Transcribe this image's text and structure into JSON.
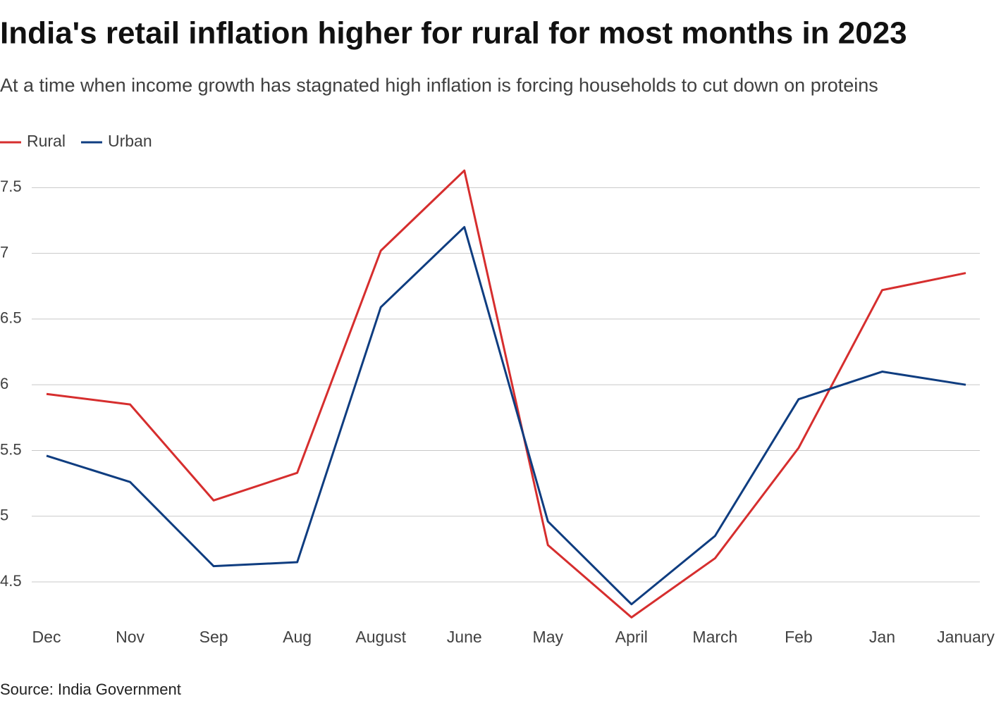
{
  "chart_data": {
    "type": "line",
    "title": "India's retail inflation higher for rural for most months in 2023",
    "subtitle": "At a time when income growth has stagnated high inflation is forcing households to cut down on proteins",
    "source": "Source: India Government",
    "categories": [
      "Dec",
      "Nov",
      "Sep",
      "Aug",
      "August",
      "June",
      "May",
      "April",
      "March",
      "Feb",
      "Jan",
      "January"
    ],
    "series": [
      {
        "name": "Rural",
        "color": "#d62e2e",
        "values": [
          5.93,
          5.85,
          5.12,
          5.33,
          7.02,
          7.63,
          4.78,
          4.23,
          4.68,
          5.52,
          6.72,
          6.85
        ]
      },
      {
        "name": "Urban",
        "color": "#0f3d80",
        "values": [
          5.46,
          5.26,
          4.62,
          4.65,
          6.59,
          7.2,
          4.96,
          4.33,
          4.85,
          5.89,
          6.1,
          6.0
        ]
      }
    ],
    "ylim": [
      4.2,
      7.7
    ],
    "yticks": [
      4.5,
      5,
      5.5,
      6,
      6.5,
      7,
      7.5
    ],
    "grid": true,
    "legend": "top-left"
  }
}
